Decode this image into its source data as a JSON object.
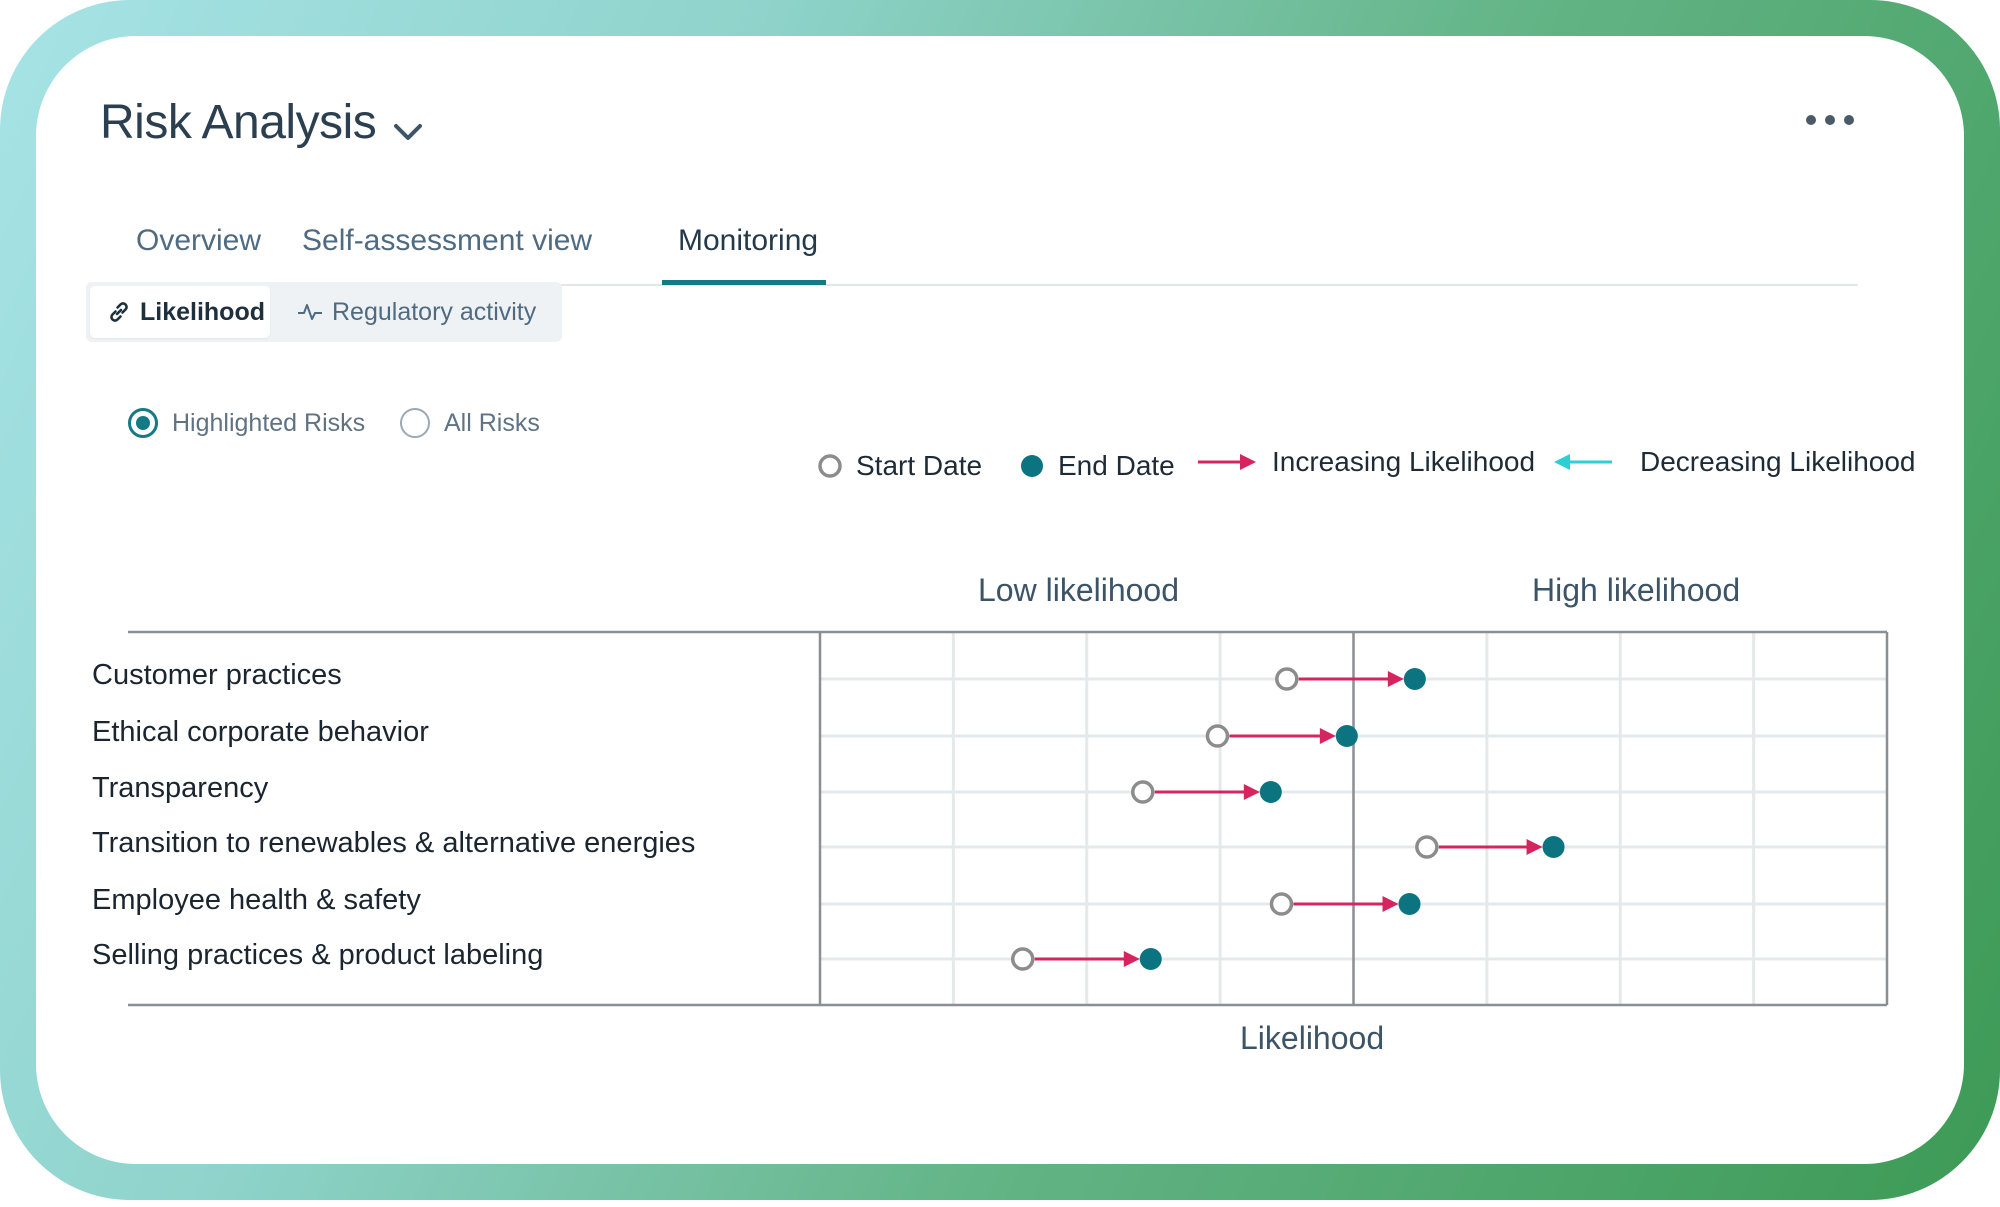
{
  "header": {
    "title": "Risk Analysis",
    "title_dropdown_icon": "chevron-down-icon",
    "more_icon": "more-horizontal-icon"
  },
  "tabs": [
    {
      "label": "Overview",
      "active": false
    },
    {
      "label": "Self-assessment view",
      "active": false
    },
    {
      "label": "Monitoring",
      "active": true
    }
  ],
  "view_toggle": [
    {
      "label": "Likelihood",
      "icon": "link-icon",
      "active": true
    },
    {
      "label": "Regulatory activity",
      "icon": "activity-icon",
      "active": false
    }
  ],
  "filters": [
    {
      "label": "Highlighted Risks",
      "checked": true
    },
    {
      "label": "All Risks",
      "checked": false
    }
  ],
  "colors": {
    "accent": "#137a86",
    "increase": "#d6245f",
    "decrease": "#2ccfd3",
    "start": "#8c8c8c",
    "end": "#0c7480"
  },
  "legend": {
    "start": "Start Date",
    "end": "End Date",
    "increasing": "Increasing Likelihood",
    "decreasing": "Decreasing Likelihood"
  },
  "chart_data": {
    "type": "dumbbell",
    "xlabel": "Likelihood",
    "band_labels": [
      "Low likelihood",
      "High likelihood"
    ],
    "xlim": [
      0,
      8
    ],
    "midpoint": 4,
    "grid": true,
    "legend_position": "top-right",
    "categories": [
      "Customer practices",
      "Ethical corporate behavior",
      "Transparency",
      "Transition to renewables & alternative energies",
      "Employee health & safety",
      "Selling practices & product labeling"
    ],
    "series": [
      {
        "name": "Start Date",
        "values": [
          3.5,
          2.98,
          2.42,
          4.55,
          3.46,
          1.52
        ]
      },
      {
        "name": "End Date",
        "values": [
          4.46,
          3.95,
          3.38,
          5.5,
          4.42,
          2.48
        ]
      }
    ]
  }
}
